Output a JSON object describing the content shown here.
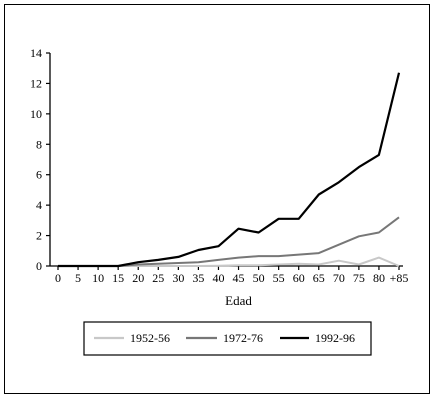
{
  "chart_data": {
    "type": "line",
    "xlabel": "Edad",
    "ylabel": "",
    "title": "",
    "categories": [
      "0",
      "5",
      "10",
      "15",
      "20",
      "25",
      "30",
      "35",
      "40",
      "45",
      "50",
      "55",
      "60",
      "65",
      "70",
      "75",
      "80",
      "+85"
    ],
    "ylim": [
      0,
      14
    ],
    "yticks": [
      0,
      2,
      4,
      6,
      8,
      10,
      12,
      14
    ],
    "grid": false,
    "legend_position": "bottom",
    "series": [
      {
        "name": "1952-56",
        "color": "#c8c8c8",
        "values": [
          0,
          0,
          0,
          0,
          0,
          0,
          0,
          0,
          0.02,
          0.05,
          0.05,
          0.1,
          0.15,
          0.1,
          0.35,
          0.1,
          0.55,
          0
        ]
      },
      {
        "name": "1972-76",
        "color": "#777777",
        "values": [
          0,
          0,
          0,
          0,
          0.1,
          0.15,
          0.2,
          0.25,
          0.4,
          0.55,
          0.65,
          0.65,
          0.75,
          0.85,
          1.4,
          1.95,
          2.2,
          3.2
        ]
      },
      {
        "name": "1992-96",
        "color": "#000000",
        "values": [
          0,
          0,
          0,
          0,
          0.25,
          0.4,
          0.6,
          1.05,
          1.3,
          2.45,
          2.2,
          3.1,
          3.1,
          4.7,
          5.5,
          6.5,
          7.3,
          12.7
        ]
      }
    ]
  }
}
